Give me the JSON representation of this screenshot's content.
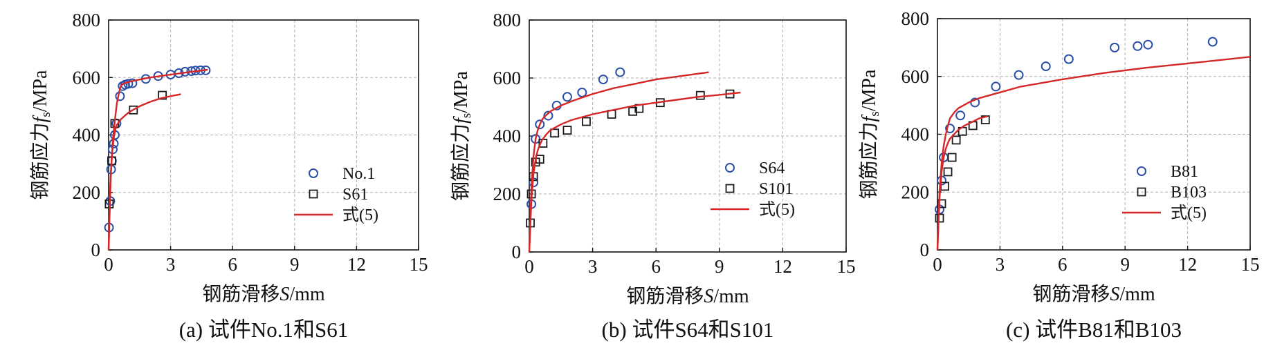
{
  "colors": {
    "circle": "#2a4fa6",
    "square": "#1a1a1a",
    "curve": "#d62728",
    "grid": "#b0b0b0",
    "axis": "#111111"
  },
  "chart_data": [
    {
      "type": "scatter",
      "caption": "(a) 试件No.1和S61",
      "xlabel_prefix": "钢筋滑移",
      "xlabel_var": "S",
      "xlabel_unit": "/mm",
      "ylabel_prefix": "钢筋应力",
      "ylabel_var": "f",
      "ylabel_sub": "s",
      "ylabel_unit": "/MPa",
      "xlim": [
        0,
        15
      ],
      "ylim": [
        0,
        800
      ],
      "xticks": [
        0,
        3,
        6,
        9,
        12,
        15
      ],
      "yticks": [
        0,
        200,
        400,
        600,
        800
      ],
      "grid": true,
      "legend_position": "bottom-right",
      "series": [
        {
          "name": "No.1",
          "marker": "circle",
          "x": [
            0.02,
            0.08,
            0.12,
            0.16,
            0.2,
            0.25,
            0.3,
            0.38,
            0.55,
            0.68,
            0.8,
            0.95,
            1.15,
            1.8,
            2.4,
            3.0,
            3.4,
            3.7,
            4.0,
            4.2,
            4.45,
            4.7
          ],
          "y": [
            78,
            170,
            280,
            310,
            350,
            370,
            400,
            440,
            535,
            570,
            575,
            578,
            580,
            595,
            605,
            610,
            615,
            620,
            622,
            624,
            625,
            625
          ]
        },
        {
          "name": "S61",
          "marker": "square",
          "x": [
            0.03,
            0.15,
            0.3,
            1.2,
            2.6
          ],
          "y": [
            160,
            310,
            440,
            487,
            538
          ]
        },
        {
          "name": "式(5)",
          "marker": "line",
          "x": [
            0,
            0.05,
            0.1,
            0.15,
            0.2,
            0.25,
            0.3,
            0.35,
            0.4,
            0.5,
            0.6,
            0.8,
            1.0,
            1.5,
            2.0,
            2.5,
            3.0,
            3.5
          ],
          "y": [
            0,
            170,
            260,
            320,
            360,
            390,
            410,
            425,
            435,
            445,
            455,
            468,
            480,
            500,
            515,
            527,
            535,
            542
          ]
        },
        {
          "name": "式(5)",
          "marker": "line",
          "x": [
            0,
            0.1,
            0.2,
            0.3,
            0.4,
            0.5,
            0.55,
            0.6,
            0.7,
            0.8,
            1.0,
            1.5,
            2.0,
            3.0,
            4.0,
            4.8
          ],
          "y": [
            0,
            250,
            380,
            450,
            510,
            545,
            560,
            572,
            578,
            581,
            585,
            593,
            600,
            610,
            620,
            627
          ]
        }
      ]
    },
    {
      "type": "scatter",
      "caption": "(b) 试件S64和S101",
      "xlabel_prefix": "钢筋滑移",
      "xlabel_var": "S",
      "xlabel_unit": "/mm",
      "ylabel_prefix": "钢筋应力",
      "ylabel_var": "f",
      "ylabel_sub": "s",
      "ylabel_unit": "/MPa",
      "xlim": [
        0,
        15
      ],
      "ylim": [
        0,
        800
      ],
      "xticks": [
        0,
        3,
        6,
        9,
        12,
        15
      ],
      "yticks": [
        0,
        200,
        400,
        600,
        800
      ],
      "grid": true,
      "legend_position": "bottom-right",
      "series": [
        {
          "name": "S64",
          "marker": "circle",
          "x": [
            0.1,
            0.2,
            0.3,
            0.5,
            0.9,
            1.3,
            1.8,
            2.5,
            3.5,
            4.3
          ],
          "y": [
            165,
            240,
            390,
            440,
            470,
            505,
            535,
            550,
            595,
            620
          ]
        },
        {
          "name": "S101",
          "marker": "square",
          "x": [
            0.05,
            0.1,
            0.2,
            0.3,
            0.5,
            0.65,
            1.2,
            1.8,
            2.7,
            3.9,
            4.9,
            5.2,
            6.2,
            8.1,
            9.5
          ],
          "y": [
            100,
            200,
            260,
            310,
            320,
            375,
            410,
            420,
            450,
            475,
            485,
            495,
            515,
            540,
            545
          ]
        },
        {
          "name": "式(5)",
          "marker": "line",
          "x": [
            0,
            0.1,
            0.2,
            0.3,
            0.4,
            0.5,
            0.6,
            0.7,
            0.8,
            1.0,
            1.5,
            2.0,
            3.0,
            4.0,
            5.0,
            6.0,
            7.0,
            8.0,
            8.5
          ],
          "y": [
            0,
            220,
            330,
            390,
            420,
            440,
            455,
            465,
            472,
            485,
            505,
            520,
            545,
            565,
            580,
            595,
            605,
            615,
            620
          ]
        },
        {
          "name": "式(5)",
          "marker": "line",
          "x": [
            0,
            0.1,
            0.2,
            0.3,
            0.4,
            0.5,
            0.6,
            0.8,
            1.0,
            1.5,
            2.0,
            3.0,
            4.0,
            5.0,
            6.0,
            7.0,
            8.0,
            9.0,
            10.0
          ],
          "y": [
            0,
            180,
            270,
            320,
            350,
            370,
            385,
            405,
            420,
            440,
            455,
            475,
            490,
            505,
            515,
            525,
            535,
            542,
            550
          ]
        }
      ]
    },
    {
      "type": "scatter",
      "caption": "(c) 试件B81和B103",
      "xlabel_prefix": "钢筋滑移",
      "xlabel_var": "S",
      "xlabel_unit": "/mm",
      "ylabel_prefix": "钢筋应力",
      "ylabel_var": "f",
      "ylabel_sub": "s",
      "ylabel_unit": "/MPa",
      "xlim": [
        0,
        15
      ],
      "ylim": [
        0,
        800
      ],
      "xticks": [
        0,
        3,
        6,
        9,
        12,
        15
      ],
      "yticks": [
        0,
        200,
        400,
        600,
        800
      ],
      "grid": true,
      "legend_position": "bottom-right",
      "series": [
        {
          "name": "B81",
          "marker": "circle",
          "x": [
            0.1,
            0.2,
            0.3,
            0.6,
            1.1,
            1.8,
            2.8,
            3.9,
            5.2,
            6.3,
            8.5,
            9.6,
            10.1,
            13.2
          ],
          "y": [
            140,
            240,
            320,
            420,
            465,
            510,
            565,
            605,
            635,
            660,
            700,
            705,
            710,
            720
          ]
        },
        {
          "name": "B103",
          "marker": "square",
          "x": [
            0.1,
            0.2,
            0.35,
            0.5,
            0.7,
            0.9,
            1.2,
            1.7,
            2.3
          ],
          "y": [
            110,
            160,
            220,
            270,
            320,
            380,
            410,
            430,
            450
          ]
        },
        {
          "name": "式(5)",
          "marker": "line",
          "x": [
            0,
            0.1,
            0.2,
            0.3,
            0.4,
            0.5,
            0.6,
            0.8,
            1.0,
            1.5,
            2.0,
            3.0,
            4.0,
            6.0,
            8.0,
            10.0,
            12.0,
            14.0,
            15.0
          ],
          "y": [
            0,
            200,
            300,
            360,
            400,
            430,
            455,
            475,
            490,
            510,
            525,
            545,
            565,
            590,
            612,
            630,
            645,
            660,
            668
          ]
        },
        {
          "name": "式(5)",
          "marker": "line",
          "x": [
            0,
            0.1,
            0.2,
            0.3,
            0.4,
            0.5,
            0.6,
            0.8,
            1.0,
            1.3,
            1.6,
            2.0,
            2.4
          ],
          "y": [
            0,
            180,
            270,
            320,
            350,
            370,
            385,
            400,
            415,
            430,
            440,
            455,
            462
          ]
        }
      ]
    }
  ]
}
